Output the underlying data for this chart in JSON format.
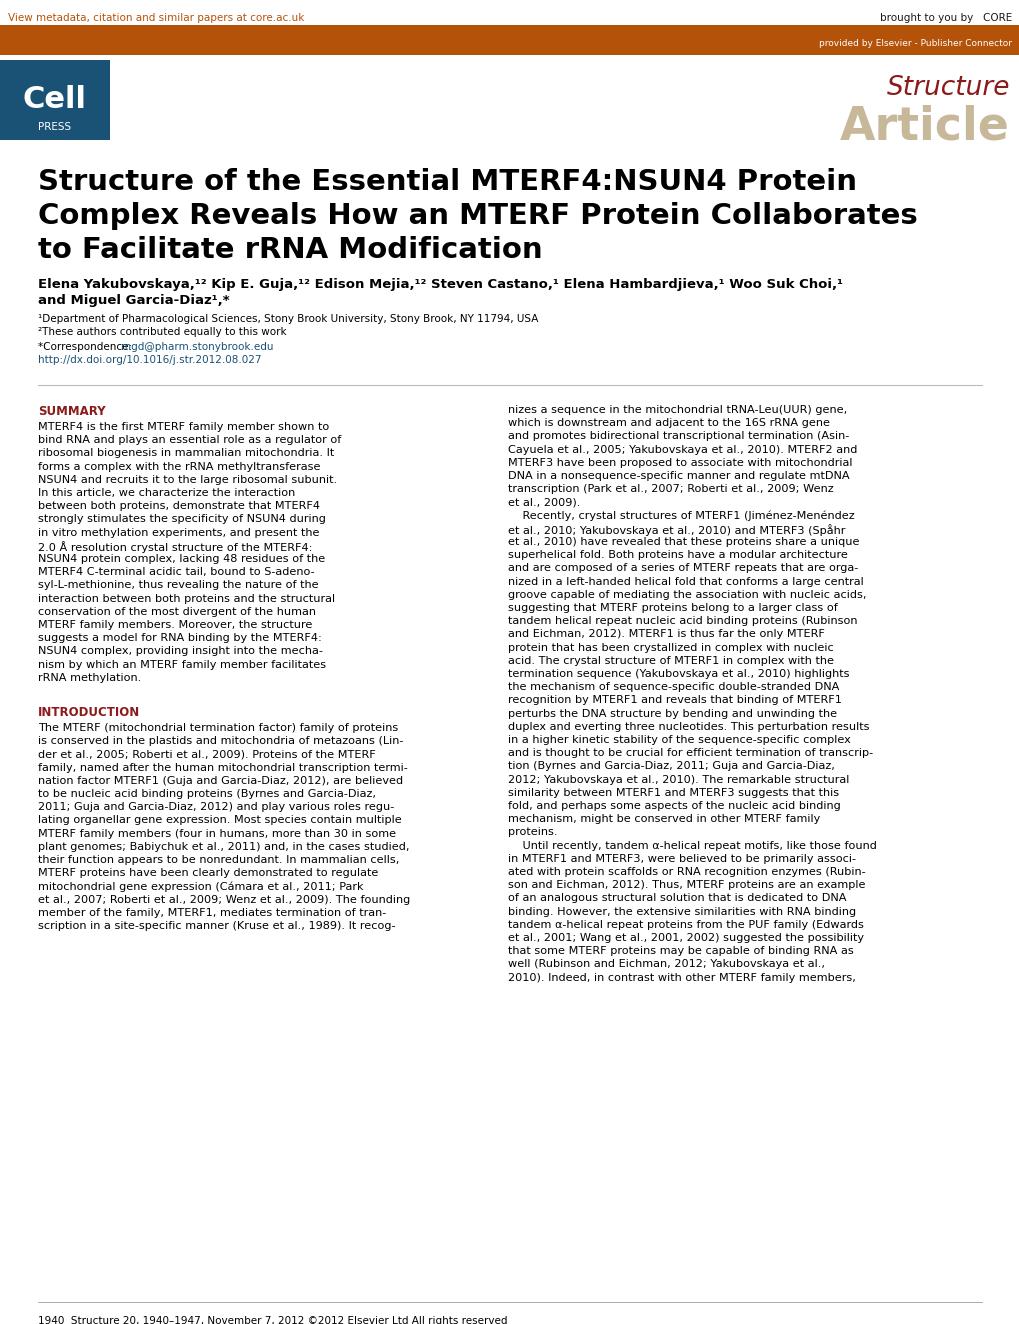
{
  "page_width": 10.2,
  "page_height": 13.24,
  "dpi": 100,
  "background_color": "#ffffff",
  "header_bar_color": "#b5520a",
  "cell_press_bg": "#1a5276",
  "top_bar_text": "View metadata, citation and similar papers at core.ac.uk",
  "top_bar_link_color": "#b5520a",
  "core_text": "brought to you by   CORE",
  "provided_text": "provided by Elsevier - Publisher Connector",
  "journal_name": "Structure",
  "journal_name_color": "#8b1a1a",
  "article_text": "Article",
  "article_color": "#c8b89a",
  "link_color": "#1a5276",
  "summary_heading": "SUMMARY",
  "summary_heading_color": "#8b1a1a",
  "intro_heading": "INTRODUCTION",
  "intro_heading_color": "#8b1a1a",
  "affil1": "¹Department of Pharmacological Sciences, Stony Brook University, Stony Brook, NY 11794, USA",
  "affil2": "²These authors contributed equally to this work",
  "doi": "http://dx.doi.org/10.1016/j.str.2012.08.027",
  "footer_text": "1940  Structure 20, 1940–1947, November 7, 2012 ©2012 Elsevier Ltd All rights reserved",
  "summary_lines": [
    "MTERF4 is the first MTERF family member shown to",
    "bind RNA and plays an essential role as a regulator of",
    "ribosomal biogenesis in mammalian mitochondria. It",
    "forms a complex with the rRNA methyltransferase",
    "NSUN4 and recruits it to the large ribosomal subunit.",
    "In this article, we characterize the interaction",
    "between both proteins, demonstrate that MTERF4",
    "strongly stimulates the specificity of NSUN4 during",
    "in vitro methylation experiments, and present the",
    "2.0 Å resolution crystal structure of the MTERF4:",
    "NSUN4 protein complex, lacking 48 residues of the",
    "MTERF4 C-terminal acidic tail, bound to S-adeno-",
    "syl-L-methionine, thus revealing the nature of the",
    "interaction between both proteins and the structural",
    "conservation of the most divergent of the human",
    "MTERF family members. Moreover, the structure",
    "suggests a model for RNA binding by the MTERF4:",
    "NSUN4 complex, providing insight into the mecha-",
    "nism by which an MTERF family member facilitates",
    "rRNA methylation."
  ],
  "intro_lines": [
    "The MTERF (mitochondrial termination factor) family of proteins",
    "is conserved in the plastids and mitochondria of metazoans (Lin-",
    "der et al., 2005; Roberti et al., 2009). Proteins of the MTERF",
    "family, named after the human mitochondrial transcription termi-",
    "nation factor MTERF1 (Guja and Garcia-Diaz, 2012), are believed",
    "to be nucleic acid binding proteins (Byrnes and Garcia-Diaz,",
    "2011; Guja and Garcia-Diaz, 2012) and play various roles regu-",
    "lating organellar gene expression. Most species contain multiple",
    "MTERF family members (four in humans, more than 30 in some",
    "plant genomes; Babiychuk et al., 2011) and, in the cases studied,",
    "their function appears to be nonredundant. In mammalian cells,",
    "MTERF proteins have been clearly demonstrated to regulate",
    "mitochondrial gene expression (Cámara et al., 2011; Park",
    "et al., 2007; Roberti et al., 2009; Wenz et al., 2009). The founding",
    "member of the family, MTERF1, mediates termination of tran-",
    "scription in a site-specific manner (Kruse et al., 1989). It recog-"
  ],
  "right_lines": [
    "nizes a sequence in the mitochondrial tRNA-Leu(UUR) gene,",
    "which is downstream and adjacent to the 16S rRNA gene",
    "and promotes bidirectional transcriptional termination (Asin-",
    "Cayuela et al., 2005; Yakubovskaya et al., 2010). MTERF2 and",
    "MTERF3 have been proposed to associate with mitochondrial",
    "DNA in a nonsequence-specific manner and regulate mtDNA",
    "transcription (Park et al., 2007; Roberti et al., 2009; Wenz",
    "et al., 2009).",
    "    Recently, crystal structures of MTERF1 (Jiménez-Menéndez",
    "et al., 2010; Yakubovskaya et al., 2010) and MTERF3 (Spåhr",
    "et al., 2010) have revealed that these proteins share a unique",
    "superhelical fold. Both proteins have a modular architecture",
    "and are composed of a series of MTERF repeats that are orga-",
    "nized in a left-handed helical fold that conforms a large central",
    "groove capable of mediating the association with nucleic acids,",
    "suggesting that MTERF proteins belong to a larger class of",
    "tandem helical repeat nucleic acid binding proteins (Rubinson",
    "and Eichman, 2012). MTERF1 is thus far the only MTERF",
    "protein that has been crystallized in complex with nucleic",
    "acid. The crystal structure of MTERF1 in complex with the",
    "termination sequence (Yakubovskaya et al., 2010) highlights",
    "the mechanism of sequence-specific double-stranded DNA",
    "recognition by MTERF1 and reveals that binding of MTERF1",
    "perturbs the DNA structure by bending and unwinding the",
    "duplex and everting three nucleotides. This perturbation results",
    "in a higher kinetic stability of the sequence-specific complex",
    "and is thought to be crucial for efficient termination of transcrip-",
    "tion (Byrnes and Garcia-Diaz, 2011; Guja and Garcia-Diaz,",
    "2012; Yakubovskaya et al., 2010). The remarkable structural",
    "similarity between MTERF1 and MTERF3 suggests that this",
    "fold, and perhaps some aspects of the nucleic acid binding",
    "mechanism, might be conserved in other MTERF family",
    "proteins.",
    "    Until recently, tandem α-helical repeat motifs, like those found",
    "in MTERF1 and MTERF3, were believed to be primarily associ-",
    "ated with protein scaffolds or RNA recognition enzymes (Rubin-",
    "son and Eichman, 2012). Thus, MTERF proteins are an example",
    "of an analogous structural solution that is dedicated to DNA",
    "binding. However, the extensive similarities with RNA binding",
    "tandem α-helical repeat proteins from the PUF family (Edwards",
    "et al., 2001; Wang et al., 2001, 2002) suggested the possibility",
    "that some MTERF proteins may be capable of binding RNA as",
    "well (Rubinson and Eichman, 2012; Yakubovskaya et al.,",
    "2010). Indeed, in contrast with other MTERF family members,"
  ]
}
